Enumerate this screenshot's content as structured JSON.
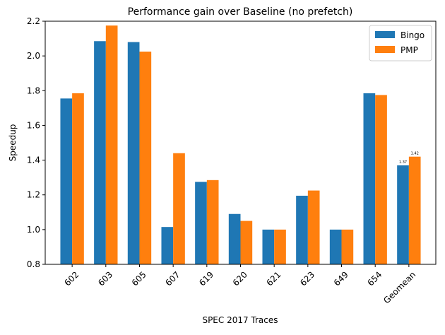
{
  "chart_data": {
    "type": "bar",
    "title": "Performance gain over Baseline (no prefetch)",
    "xlabel": "SPEC 2017 Traces",
    "ylabel": "Speedup",
    "ylim": [
      0.8,
      2.2
    ],
    "yticks": [
      "0.8",
      "1.0",
      "1.2",
      "1.4",
      "1.6",
      "1.8",
      "2.0",
      "2.2"
    ],
    "categories": [
      "602",
      "603",
      "605",
      "607",
      "619",
      "620",
      "621",
      "623",
      "649",
      "654",
      "Geomean"
    ],
    "series": [
      {
        "name": "Bingo",
        "color": "#1f77b4",
        "values": [
          1.755,
          2.085,
          2.08,
          1.015,
          1.275,
          1.09,
          1.0,
          1.195,
          1.0,
          1.785,
          1.37
        ]
      },
      {
        "name": "PMP",
        "color": "#ff7f0e",
        "values": [
          1.785,
          2.175,
          2.025,
          1.44,
          1.285,
          1.05,
          1.0,
          1.225,
          1.0,
          1.775,
          1.42
        ]
      }
    ],
    "annotations": [
      {
        "category": "Geomean",
        "series": "Bingo",
        "text": "1.37"
      },
      {
        "category": "Geomean",
        "series": "PMP",
        "text": "1.42"
      }
    ],
    "legend": {
      "position": "top-right",
      "entries": [
        "Bingo",
        "PMP"
      ]
    },
    "grid": false
  }
}
